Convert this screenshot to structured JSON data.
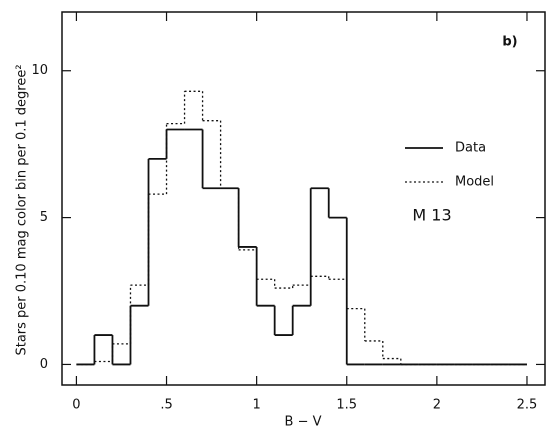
{
  "chart_data": {
    "type": "histogram",
    "panel_label": "b)",
    "xlabel": "B − V",
    "ylabel": "Stars per 0.10 mag color bin per 0.1 degree²",
    "annotation": "M 13",
    "bins": [
      0,
      0.1,
      0.2,
      0.3,
      0.4,
      0.5,
      0.6,
      0.7,
      0.8,
      0.9,
      1.0,
      1.1,
      1.2,
      1.3,
      1.4,
      1.5,
      1.6,
      1.7,
      1.8,
      1.9,
      2.0,
      2.1,
      2.2,
      2.3,
      2.4,
      2.5
    ],
    "series": [
      {
        "name": "Data",
        "color": "#111111",
        "style": "solid",
        "values": [
          0,
          1,
          0,
          2,
          7,
          8,
          8,
          6,
          6,
          4,
          2,
          1,
          2,
          6,
          5,
          0,
          0,
          0,
          0,
          0,
          0,
          0,
          0,
          0,
          0
        ]
      },
      {
        "name": "Model",
        "color": "#111111",
        "style": "dotted",
        "values": [
          0,
          0.1,
          0.7,
          2.7,
          5.8,
          8.2,
          9.3,
          8.3,
          6.0,
          3.9,
          2.9,
          2.6,
          2.7,
          3.0,
          2.9,
          1.9,
          0.8,
          0.2,
          0,
          0,
          0,
          0,
          0,
          0,
          0
        ]
      }
    ],
    "xlim": [
      -0.08,
      2.6
    ],
    "ylim": [
      -0.7,
      12
    ],
    "xticks": [
      0,
      {
        "value": 0.5,
        "label": ".5"
      },
      1,
      1.5,
      2,
      2.5
    ],
    "yticks": [
      0,
      5,
      10
    ],
    "legend": "right"
  }
}
